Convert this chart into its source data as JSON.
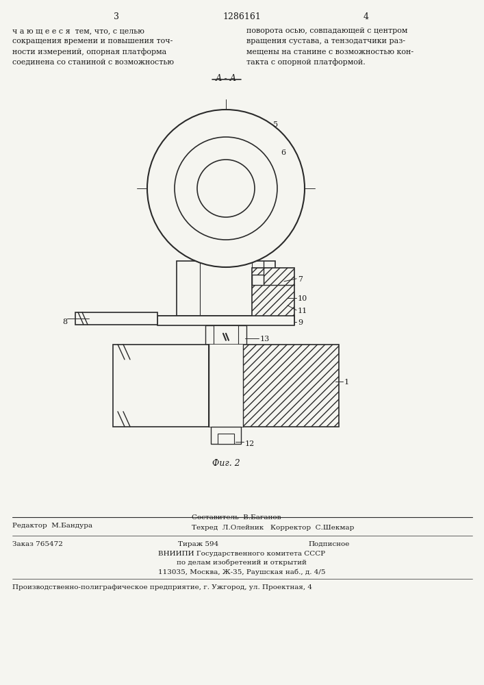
{
  "page_number_left": "3",
  "page_number_right": "4",
  "patent_number": "1286161",
  "text_left": "ч а ю щ е е с я  тем, что, с целью\nсокращения времени и повышения точ-\nности измерений, опорная платформа\nсоединена со станиной с возможностью",
  "text_right": "поворота осью, совпадающей с центром\nвращения сустава, а тензодатчики раз-\nмещены на станине с возможностью кон-\nтакта с опорной платформой.",
  "section_label": "А - А",
  "fig_label": "Фиг. 2",
  "editor_line": "Редактор  М.Бандура",
  "composer_line": "Составитель  В.Баганов",
  "tech_corrector_line": "Техред  Л.Олейник   Корректор  С.Шекмар",
  "order_line": "Заказ 765472",
  "tirazh_line": "Тираж 594",
  "podpisnoe_line": "Подписное",
  "vniipи_line": "ВНИИПИ Государственного комитета СССР",
  "po_delam_line": "по делам изобретений и открытий",
  "address_line": "113035, Москва, Ж-35, Раушская наб., д. 4/5",
  "production_line": "Производственно-полиграфическое предприятие, г. Ужгород, ул. Проектная, 4",
  "bg_color": "#f5f5f0",
  "text_color": "#1a1a1a",
  "line_color": "#2a2a2a",
  "hatch_color": "#2a2a2a"
}
